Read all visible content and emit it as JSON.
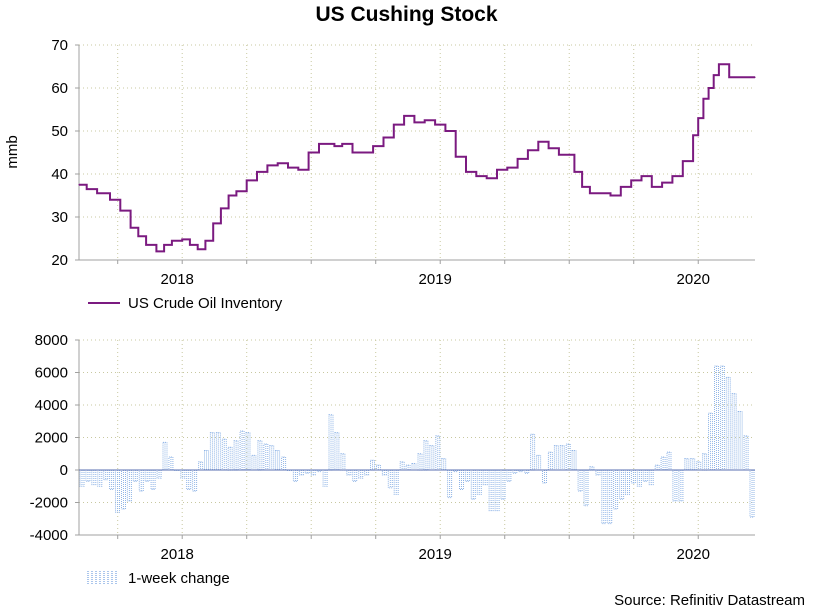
{
  "page": {
    "title": "US Cushing Stock",
    "source": "Source: Refinitiv Datastream"
  },
  "colors": {
    "line": "#7B1A80",
    "bar": "#8FB4E6",
    "grid": "#C8C8A0",
    "axis": "#A0A0A0"
  },
  "chart_data": [
    {
      "type": "line",
      "title": "US Cushing Stock",
      "ylabel": "mmb",
      "xlabel": "",
      "ylim": [
        20,
        70
      ],
      "yticks": [
        20,
        30,
        40,
        50,
        60,
        70
      ],
      "xlim": [
        2017.6,
        2020.22
      ],
      "xticks": [
        {
          "label": "2018",
          "x": 2018.0
        },
        {
          "label": "2019",
          "x": 2019.0
        },
        {
          "label": "2020",
          "x": 2020.0
        }
      ],
      "grid": true,
      "legend": "bottom-left",
      "series": [
        {
          "name": "US Crude Oil Inventory",
          "x": [
            2017.6,
            2017.63,
            2017.67,
            2017.72,
            2017.76,
            2017.8,
            2017.83,
            2017.86,
            2017.9,
            2017.93,
            2017.96,
            2018.0,
            2018.03,
            2018.06,
            2018.09,
            2018.12,
            2018.15,
            2018.18,
            2018.21,
            2018.25,
            2018.29,
            2018.33,
            2018.37,
            2018.41,
            2018.45,
            2018.49,
            2018.53,
            2018.56,
            2018.59,
            2018.62,
            2018.66,
            2018.7,
            2018.74,
            2018.78,
            2018.82,
            2018.86,
            2018.9,
            2018.94,
            2018.98,
            2019.02,
            2019.06,
            2019.1,
            2019.14,
            2019.18,
            2019.22,
            2019.26,
            2019.3,
            2019.34,
            2019.38,
            2019.42,
            2019.46,
            2019.5,
            2019.52,
            2019.55,
            2019.58,
            2019.62,
            2019.66,
            2019.7,
            2019.74,
            2019.78,
            2019.82,
            2019.86,
            2019.9,
            2019.94,
            2019.98,
            2020.0,
            2020.02,
            2020.04,
            2020.06,
            2020.08,
            2020.1,
            2020.12,
            2020.14,
            2020.17,
            2020.2,
            2020.22
          ],
          "values": [
            37.5,
            36.5,
            35.5,
            34.0,
            31.5,
            27.5,
            25.5,
            23.5,
            22.0,
            23.5,
            24.5,
            24.8,
            23.5,
            22.5,
            24.5,
            28.5,
            32.0,
            35.0,
            36.0,
            38.5,
            40.5,
            42.0,
            42.5,
            41.5,
            41.0,
            45.0,
            47.0,
            47.0,
            46.5,
            47.0,
            45.0,
            45.0,
            46.5,
            48.5,
            51.5,
            53.5,
            52.0,
            52.5,
            51.5,
            50.0,
            44.0,
            40.5,
            39.5,
            39.0,
            41.0,
            41.5,
            43.5,
            45.5,
            47.5,
            46.0,
            44.5,
            44.5,
            40.5,
            37.0,
            35.5,
            35.5,
            35.0,
            37.0,
            38.5,
            39.5,
            37.0,
            38.0,
            39.5,
            43.0,
            49.0,
            53.0,
            57.5,
            60.0,
            63.0,
            65.5,
            65.5,
            62.5,
            62.5,
            62.5,
            62.5,
            62.5
          ]
        }
      ]
    },
    {
      "type": "bar",
      "ylabel": "",
      "xlabel": "",
      "ylim": [
        -4000,
        8000
      ],
      "yticks": [
        -4000,
        -2000,
        0,
        2000,
        4000,
        6000,
        8000
      ],
      "xlim": [
        2017.6,
        2020.22
      ],
      "xticks": [
        {
          "label": "2018",
          "x": 2018.0
        },
        {
          "label": "2019",
          "x": 2019.0
        },
        {
          "label": "2020",
          "x": 2020.0
        }
      ],
      "grid": true,
      "legend": "bottom-left",
      "series": [
        {
          "name": "1-week change",
          "values": [
            -1000,
            -700,
            -900,
            -1000,
            -600,
            -1200,
            -2600,
            -2400,
            -1900,
            -700,
            -1300,
            -700,
            -1200,
            -500,
            1700,
            800,
            0,
            -500,
            -1200,
            -1300,
            500,
            1200,
            2300,
            2300,
            1900,
            1400,
            1800,
            2400,
            2300,
            900,
            1800,
            1600,
            1500,
            1200,
            800,
            0,
            -700,
            -300,
            -200,
            -300,
            -100,
            -1000,
            3400,
            2300,
            1000,
            -300,
            -700,
            -500,
            -300,
            600,
            300,
            -300,
            -1100,
            -1500,
            500,
            300,
            400,
            1000,
            1800,
            1500,
            2100,
            700,
            -1700,
            -100,
            -1200,
            -700,
            -1800,
            -1500,
            -900,
            -2500,
            -2500,
            -1800,
            -700,
            -200,
            -100,
            -200,
            2200,
            900,
            -800,
            1100,
            1500,
            1500,
            1600,
            1200,
            -1300,
            -2200,
            200,
            -300,
            -3300,
            -3300,
            -2400,
            -1800,
            -1500,
            -800,
            -1000,
            -700,
            -900,
            300,
            800,
            1100,
            -1900,
            -1900,
            700,
            700,
            500,
            1000,
            3500,
            6400,
            6400,
            5700,
            4700,
            3600,
            2100,
            -2900
          ]
        }
      ]
    }
  ]
}
